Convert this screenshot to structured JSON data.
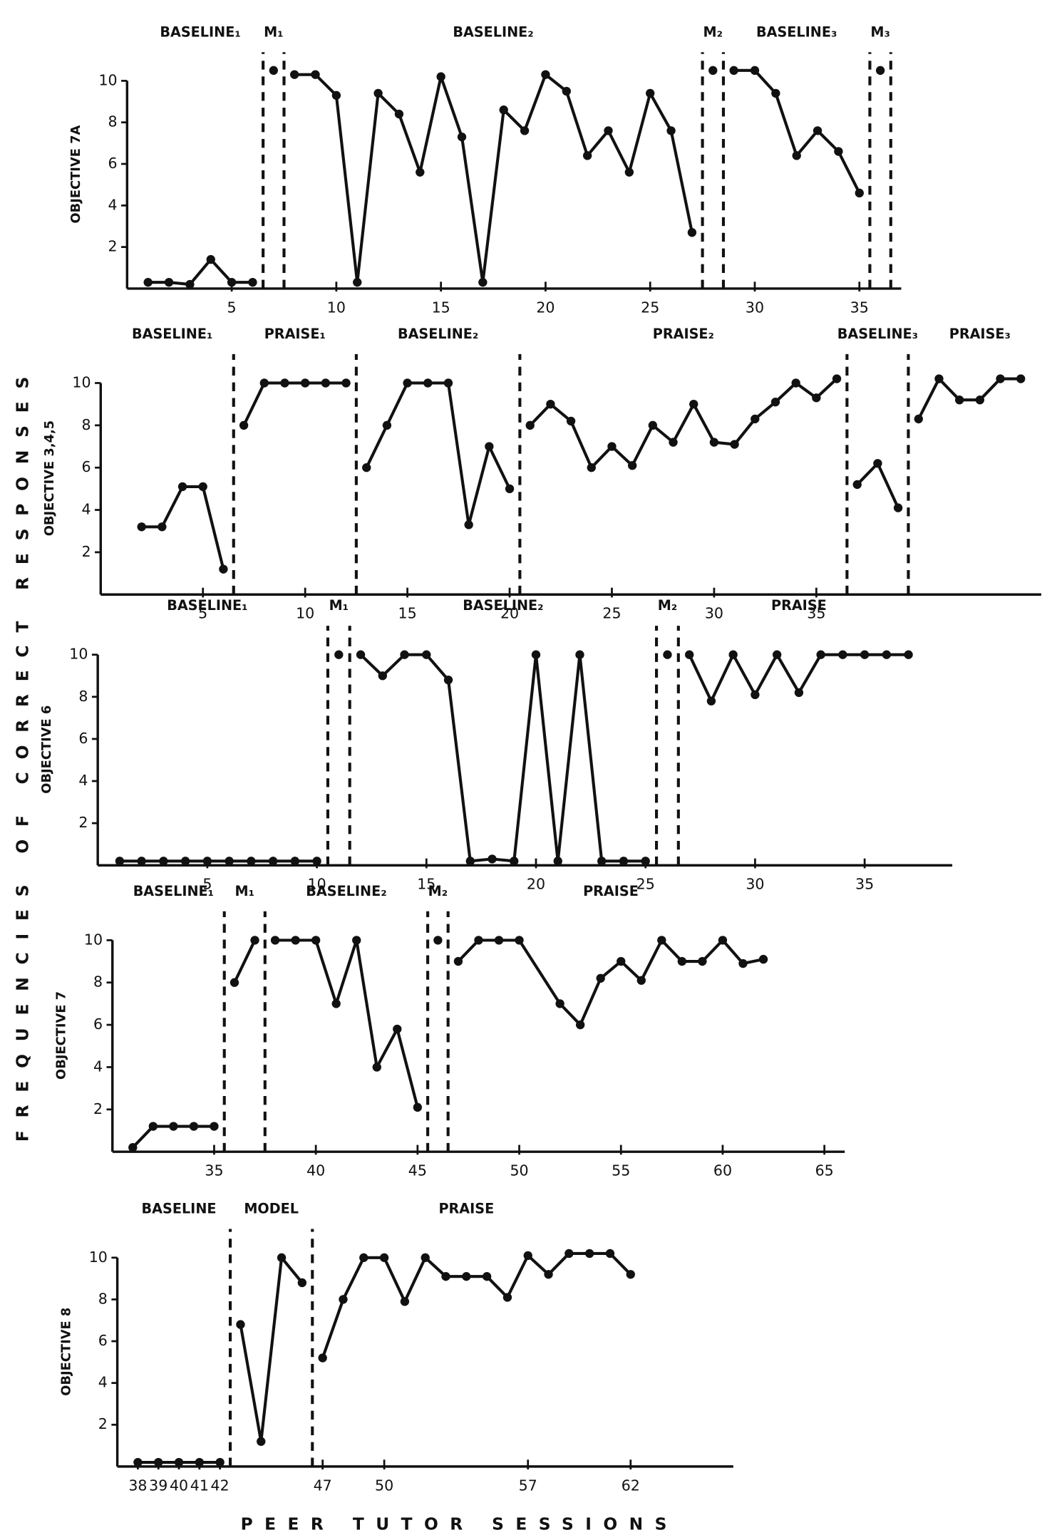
{
  "shared_ylabel": "FREQUENCIES OF CORRECT RESPONSES",
  "shared_xlabel": "PEER TUTOR SESSIONS",
  "chart_data": [
    {
      "type": "line",
      "ylabel": "OBJECTIVE 7A",
      "color": "#111111",
      "xlim": [
        0,
        37
      ],
      "ylim": [
        0,
        11
      ],
      "xticks": [
        5,
        10,
        15,
        20,
        25,
        30,
        35
      ],
      "yticks": [
        2,
        4,
        6,
        8,
        10
      ],
      "phase_lines": [
        6.5,
        7.5,
        27.5,
        28.5,
        35.5,
        36.5
      ],
      "phases": [
        {
          "label": "BASELINE₁",
          "x": 3.5
        },
        {
          "label": "M₁",
          "x": 7
        },
        {
          "label": "BASELINE₂",
          "x": 17.5
        },
        {
          "label": "M₂",
          "x": 28
        },
        {
          "label": "BASELINE₃",
          "x": 32
        },
        {
          "label": "M₃",
          "x": 36
        }
      ],
      "series": [
        {
          "x": [
            1,
            2,
            3,
            4,
            5,
            6
          ],
          "values": [
            0.3,
            0.3,
            0.2,
            1.4,
            0.3,
            0.3
          ]
        },
        {
          "x": [
            7
          ],
          "values": [
            10.5
          ]
        },
        {
          "x": [
            8,
            9,
            10,
            11,
            12,
            13,
            14,
            15,
            16,
            17,
            18,
            19,
            20,
            21,
            22,
            23,
            24,
            25,
            26,
            27
          ],
          "values": [
            10.3,
            10.3,
            9.3,
            0.3,
            9.4,
            8.4,
            5.6,
            10.2,
            7.3,
            0.3,
            8.6,
            7.6,
            10.3,
            9.5,
            6.4,
            7.6,
            5.6,
            9.4,
            7.6,
            2.7
          ]
        },
        {
          "x": [
            28
          ],
          "values": [
            10.5
          ]
        },
        {
          "x": [
            29,
            30,
            31,
            32,
            33,
            34,
            35
          ],
          "values": [
            10.5,
            10.5,
            9.4,
            6.4,
            7.6,
            6.6,
            4.6
          ]
        },
        {
          "x": [
            36
          ],
          "values": [
            10.5
          ]
        }
      ]
    },
    {
      "type": "line",
      "ylabel": "OBJECTIVE 3,4,5",
      "color": "#111111",
      "xlim": [
        0,
        46
      ],
      "ylim": [
        0,
        11
      ],
      "xticks": [
        5,
        10,
        15,
        20,
        25,
        30,
        35
      ],
      "yticks": [
        2,
        4,
        6,
        8,
        10
      ],
      "phase_lines": [
        6.5,
        12.5,
        20.5,
        36.5,
        39.5
      ],
      "phases": [
        {
          "label": "BASELINE₁",
          "x": 3.5
        },
        {
          "label": "PRAISE₁",
          "x": 9.5
        },
        {
          "label": "BASELINE₂",
          "x": 16.5
        },
        {
          "label": "PRAISE₂",
          "x": 28.5
        },
        {
          "label": "BASELINE₃",
          "x": 38
        },
        {
          "label": "PRAISE₃",
          "x": 43
        }
      ],
      "series": [
        {
          "x": [
            2,
            3,
            4,
            5,
            6
          ],
          "values": [
            3.2,
            3.2,
            5.1,
            5.1,
            1.2
          ]
        },
        {
          "x": [
            7,
            8,
            9,
            10,
            11,
            12
          ],
          "values": [
            8,
            10,
            10,
            10,
            10,
            10
          ]
        },
        {
          "x": [
            13,
            14,
            15,
            16,
            17,
            18,
            19,
            20
          ],
          "values": [
            6,
            8,
            10,
            10,
            10,
            3.3,
            7,
            5
          ]
        },
        {
          "x": [
            21,
            22,
            23,
            24,
            25,
            26,
            27,
            28,
            29,
            30,
            31,
            32,
            33,
            34,
            35,
            36
          ],
          "values": [
            8,
            9,
            8.2,
            6,
            7,
            6.1,
            8,
            7.2,
            9,
            7.2,
            7.1,
            8.3,
            9.1,
            10,
            9.3,
            10.2
          ]
        },
        {
          "x": [
            37,
            38,
            39
          ],
          "values": [
            5.2,
            6.2,
            4.1
          ]
        },
        {
          "x": [
            40,
            41,
            42,
            43,
            44,
            45
          ],
          "values": [
            8.3,
            10.2,
            9.2,
            9.2,
            10.2,
            10.2
          ]
        }
      ]
    },
    {
      "type": "line",
      "ylabel": "OBJECTIVE 6",
      "color": "#111111",
      "xlim": [
        0,
        39
      ],
      "ylim": [
        0,
        11
      ],
      "xticks": [
        5,
        10,
        15,
        20,
        25,
        30,
        35
      ],
      "yticks": [
        2,
        4,
        6,
        8,
        10
      ],
      "phase_lines": [
        10.5,
        11.5,
        25.5,
        26.5
      ],
      "phases": [
        {
          "label": "BASELINE₁",
          "x": 5
        },
        {
          "label": "M₁",
          "x": 11
        },
        {
          "label": "BASELINE₂",
          "x": 18.5
        },
        {
          "label": "M₂",
          "x": 26
        },
        {
          "label": "PRAISE",
          "x": 32
        }
      ],
      "series": [
        {
          "x": [
            1,
            2,
            3,
            4,
            5,
            6,
            7,
            8,
            9,
            10
          ],
          "values": [
            0.2,
            0.2,
            0.2,
            0.2,
            0.2,
            0.2,
            0.2,
            0.2,
            0.2,
            0.2
          ]
        },
        {
          "x": [
            11
          ],
          "values": [
            10
          ]
        },
        {
          "x": [
            12,
            13,
            14,
            15,
            16,
            17,
            18,
            19,
            20,
            21,
            22,
            23,
            24,
            25
          ],
          "values": [
            10,
            9,
            10,
            10,
            8.8,
            0.2,
            0.3,
            0.2,
            10,
            0.2,
            10,
            0.2,
            0.2,
            0.2
          ]
        },
        {
          "x": [
            26
          ],
          "values": [
            10
          ]
        },
        {
          "x": [
            27,
            28,
            29,
            30,
            31,
            32,
            33,
            34,
            35,
            36,
            37
          ],
          "values": [
            10,
            7.8,
            10,
            8.1,
            10,
            8.2,
            10,
            10,
            10,
            10,
            10
          ]
        }
      ]
    },
    {
      "type": "line",
      "ylabel": "OBJECTIVE 7",
      "color": "#111111",
      "xlim": [
        30,
        66
      ],
      "ylim": [
        0,
        11
      ],
      "xticks": [
        35,
        40,
        45,
        50,
        55,
        60,
        65
      ],
      "yticks": [
        2,
        4,
        6,
        8,
        10
      ],
      "phase_lines": [
        35.5,
        37.5,
        45.5,
        46.5
      ],
      "phases": [
        {
          "label": "BASELINE₁",
          "x": 33
        },
        {
          "label": "M₁",
          "x": 36.5
        },
        {
          "label": "BASELINE₂",
          "x": 41.5
        },
        {
          "label": "M₂",
          "x": 46
        },
        {
          "label": "PRAISE",
          "x": 54.5
        }
      ],
      "series": [
        {
          "x": [
            31,
            32,
            33,
            34,
            35
          ],
          "values": [
            0.2,
            1.2,
            1.2,
            1.2,
            1.2
          ]
        },
        {
          "x": [
            36,
            37
          ],
          "values": [
            8,
            10
          ]
        },
        {
          "x": [
            38,
            39,
            40,
            41,
            42,
            43,
            44,
            45
          ],
          "values": [
            10,
            10,
            10,
            7,
            10,
            4,
            5.8,
            2.1
          ]
        },
        {
          "x": [
            46
          ],
          "values": [
            10
          ]
        },
        {
          "x": [
            47,
            48,
            49,
            50,
            52,
            53,
            54,
            55,
            56,
            57,
            58,
            59,
            60,
            61,
            62
          ],
          "values": [
            9,
            10,
            10,
            10,
            7,
            6,
            8.2,
            9,
            8.1,
            10,
            9,
            9,
            10,
            8.9,
            9.1
          ]
        }
      ]
    },
    {
      "type": "line",
      "ylabel": "OBJECTIVE 8",
      "color": "#111111",
      "xlim": [
        37,
        67
      ],
      "ylim": [
        0,
        11
      ],
      "xticks": [
        38,
        39,
        40,
        41,
        42,
        47,
        50,
        57,
        62
      ],
      "yticks": [
        2,
        4,
        6,
        8,
        10
      ],
      "phase_lines": [
        42.5,
        46.5
      ],
      "phases": [
        {
          "label": "BASELINE",
          "x": 40
        },
        {
          "label": "MODEL",
          "x": 44.5
        },
        {
          "label": "PRAISE",
          "x": 54
        }
      ],
      "series": [
        {
          "x": [
            38,
            39,
            40,
            41,
            42
          ],
          "values": [
            0.2,
            0.2,
            0.2,
            0.2,
            0.2
          ]
        },
        {
          "x": [
            43,
            44,
            45,
            46
          ],
          "values": [
            6.8,
            1.2,
            10,
            8.8
          ]
        },
        {
          "x": [
            47,
            48,
            49,
            50,
            51,
            52,
            53,
            54,
            55,
            56,
            57,
            58,
            59,
            60,
            61,
            62
          ],
          "values": [
            5.2,
            8,
            10,
            10,
            7.9,
            10,
            9.1,
            9.1,
            9.1,
            8.1,
            10.1,
            9.2,
            10.2,
            10.2,
            10.2,
            9.2
          ]
        }
      ]
    }
  ]
}
